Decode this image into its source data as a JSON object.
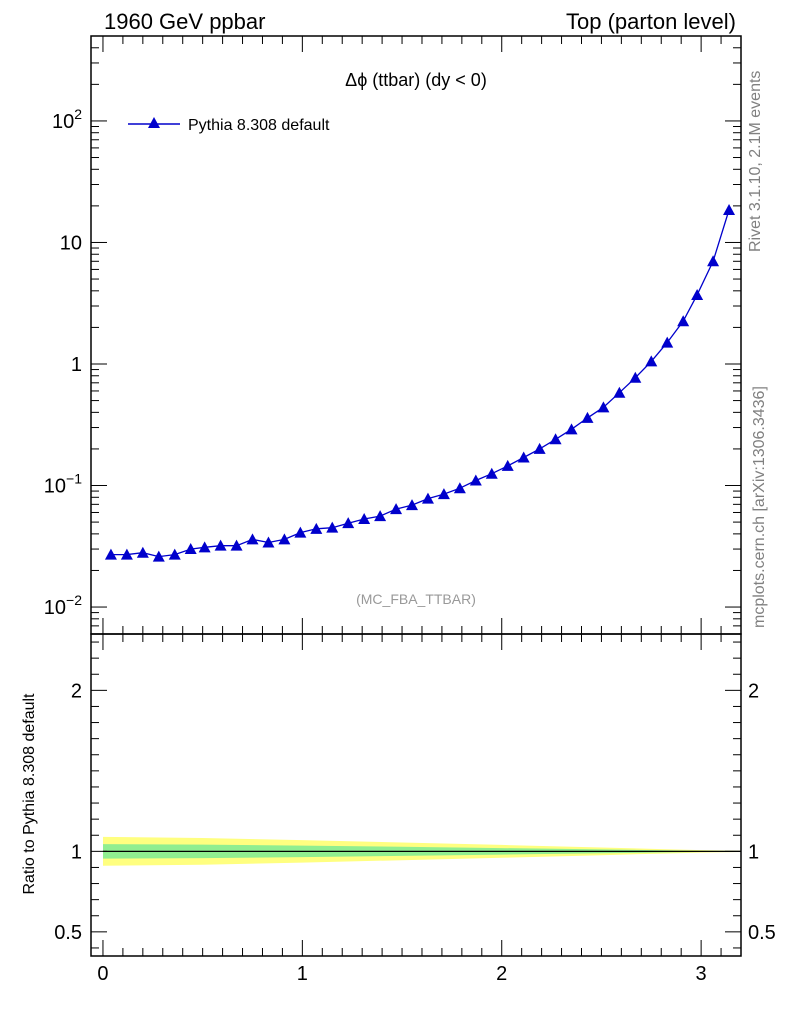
{
  "header": {
    "left": "1960 GeV ppbar",
    "right": "Top (parton level)"
  },
  "side_labels": {
    "rivet": "Rivet 3.1.10,  2.1M events",
    "mcplots": "mcplots.cern.ch [arXiv:1306.3436]"
  },
  "chart_data": [
    {
      "type": "line",
      "title": "Δϕ (ttbar) (dy < 0)",
      "analysis_tag": "(MC_FBA_TTBAR)",
      "xlabel": "",
      "ylabel": "",
      "yscale": "log",
      "ylim": [
        0.006,
        500
      ],
      "xlim": [
        -0.06,
        3.2
      ],
      "legend": {
        "position": "top-left",
        "entries": [
          "Pythia 8.308 default"
        ]
      },
      "colors": {
        "series": "#0000cc"
      },
      "y_ticks": [
        {
          "value": 0.01,
          "base": "10",
          "exp": "−2"
        },
        {
          "value": 0.1,
          "base": "10",
          "exp": "−1"
        },
        {
          "value": 1,
          "base": "1",
          "exp": ""
        },
        {
          "value": 10,
          "base": "10",
          "exp": ""
        },
        {
          "value": 100,
          "base": "10",
          "exp": "2"
        }
      ],
      "series": [
        {
          "name": "Pythia 8.308 default",
          "x": [
            0.04,
            0.12,
            0.2,
            0.28,
            0.36,
            0.44,
            0.51,
            0.59,
            0.67,
            0.75,
            0.83,
            0.91,
            0.99,
            1.07,
            1.15,
            1.23,
            1.31,
            1.39,
            1.47,
            1.55,
            1.63,
            1.71,
            1.79,
            1.87,
            1.95,
            2.03,
            2.11,
            2.19,
            2.27,
            2.35,
            2.43,
            2.51,
            2.59,
            2.67,
            2.75,
            2.83,
            2.91,
            2.98,
            3.06,
            3.14
          ],
          "values": [
            0.027,
            0.027,
            0.028,
            0.026,
            0.027,
            0.03,
            0.031,
            0.032,
            0.032,
            0.036,
            0.034,
            0.036,
            0.041,
            0.044,
            0.045,
            0.049,
            0.053,
            0.056,
            0.064,
            0.069,
            0.078,
            0.085,
            0.095,
            0.11,
            0.125,
            0.145,
            0.17,
            0.2,
            0.24,
            0.29,
            0.36,
            0.44,
            0.58,
            0.77,
            1.05,
            1.5,
            2.25,
            3.7,
            7.0,
            18.5
          ]
        }
      ]
    },
    {
      "type": "area",
      "title": "",
      "ylabel": "Ratio to Pythia 8.308 default",
      "ylim": [
        0.35,
        2.35
      ],
      "xlim": [
        -0.06,
        3.2
      ],
      "y_ticks": [
        0.5,
        1,
        2
      ],
      "x_ticks": [
        0,
        1,
        2,
        3
      ],
      "colors": {
        "inner_band": "#90ee90",
        "outer_band": "#ffff80",
        "line": "#000000"
      },
      "bands": {
        "x": [
          0.0,
          0.5,
          1.0,
          1.5,
          2.0,
          2.5,
          2.8,
          3.0,
          3.2
        ],
        "inner_half_width": [
          0.045,
          0.042,
          0.036,
          0.028,
          0.02,
          0.012,
          0.007,
          0.004,
          0.002
        ],
        "outer_half_width": [
          0.09,
          0.083,
          0.07,
          0.055,
          0.04,
          0.024,
          0.014,
          0.008,
          0.004
        ]
      }
    }
  ]
}
